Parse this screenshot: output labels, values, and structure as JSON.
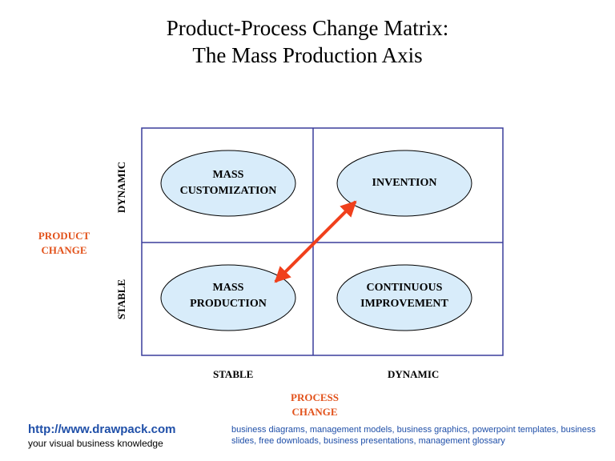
{
  "title": {
    "line1": "Product-Process Change Matrix:",
    "line2": "The Mass Production Axis"
  },
  "quadrants": {
    "top_left": [
      "MASS",
      "CUSTOMIZATION"
    ],
    "top_right": [
      "INVENTION"
    ],
    "bottom_left": [
      "MASS",
      "PRODUCTION"
    ],
    "bottom_right": [
      "CONTINUOUS",
      "IMPROVEMENT"
    ]
  },
  "y_axis": {
    "title": [
      "PRODUCT",
      "CHANGE"
    ],
    "top_label": "DYNAMIC",
    "bottom_label": "STABLE"
  },
  "x_axis": {
    "title": [
      "PROCESS",
      "CHANGE"
    ],
    "left_label": "STABLE",
    "right_label": "DYNAMIC"
  },
  "colors": {
    "grid": "#3a3d9c",
    "oval_fill": "#d8ecfa",
    "arrow": "#f0401c",
    "axis_title": "#e2521b",
    "link": "#1f4fa8"
  },
  "footer": {
    "link": "http://www.drawpack.com",
    "tagline": "your visual business knowledge",
    "keywords": "business diagrams, management models, business graphics, powerpoint templates, business slides, free downloads, business presentations, management glossary"
  }
}
